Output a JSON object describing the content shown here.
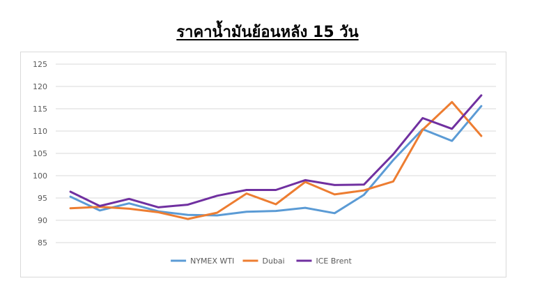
{
  "chart_data": {
    "type": "line",
    "title": "ราคาน้ำมันย้อนหลัง 15 วัน",
    "xlabel": "",
    "ylabel": "",
    "ylim": [
      85,
      125
    ],
    "yticks": [
      85,
      90,
      95,
      100,
      105,
      110,
      115,
      120,
      125
    ],
    "grid": true,
    "legend": "bottom",
    "x": [
      1,
      2,
      3,
      4,
      5,
      6,
      7,
      8,
      9,
      10,
      11,
      12,
      13,
      14,
      15
    ],
    "series": [
      {
        "name": "NYMEX WTI",
        "color": "#5b9bd5",
        "values": [
          95.3,
          92.2,
          93.8,
          92.0,
          91.2,
          91.1,
          91.9,
          92.1,
          92.8,
          91.6,
          95.7,
          103.5,
          110.4,
          107.8,
          115.6
        ]
      },
      {
        "name": "Dubai",
        "color": "#ed7d31",
        "values": [
          92.7,
          93.0,
          92.6,
          91.8,
          90.3,
          91.7,
          96.0,
          93.6,
          98.6,
          95.8,
          96.7,
          98.7,
          110.3,
          116.5,
          108.9
        ]
      },
      {
        "name": "ICE Brent",
        "color": "#7030a0",
        "values": [
          96.4,
          93.2,
          94.8,
          92.9,
          93.5,
          95.5,
          96.8,
          96.8,
          99.0,
          97.9,
          98.0,
          104.8,
          112.9,
          110.5,
          118.0
        ]
      }
    ]
  }
}
